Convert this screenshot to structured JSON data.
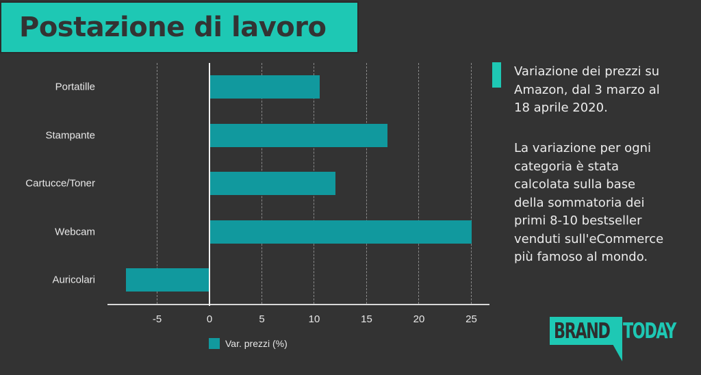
{
  "title": "Postazione di lavoro",
  "colors": {
    "background": "#333333",
    "accent": "#1ec8b4",
    "bar": "#11999e",
    "title_text": "#333333",
    "text": "#ececec"
  },
  "chart_data": {
    "type": "bar",
    "orientation": "horizontal",
    "title": "Postazione di lavoro",
    "categories": [
      "Portatille",
      "Stampante",
      "Cartucce/Toner",
      "Webcam",
      "Auricolari"
    ],
    "series": [
      {
        "name": "Var. prezzi (%)",
        "values": [
          10.5,
          17.0,
          12.0,
          25.0,
          -8.0
        ]
      }
    ],
    "xlabel": "",
    "ylabel": "",
    "xlim": [
      -9.7,
      26.7
    ],
    "xticks": [
      -5,
      0,
      5,
      10,
      15,
      20,
      25
    ],
    "grid": "vertical dashed",
    "legend_position": "bottom"
  },
  "axis": {
    "ticks": [
      "-5",
      "0",
      "5",
      "10",
      "15",
      "20",
      "25"
    ]
  },
  "legend": {
    "label": "Var. prezzi (%)"
  },
  "notes": {
    "paragraph1": [
      "Variazione dei prezzi su",
      "Amazon, dal 3 marzo al",
      "18 aprile 2020."
    ],
    "paragraph2": [
      "La variazione per ogni",
      "categoria è stata",
      "calcolata sulla base",
      "della sommatoria dei",
      "primi 8-10 bestseller",
      "venduti sull'eCommerce",
      "più famoso al mondo."
    ]
  },
  "logo": {
    "brand": "BRAND",
    "today": "TODAY"
  }
}
